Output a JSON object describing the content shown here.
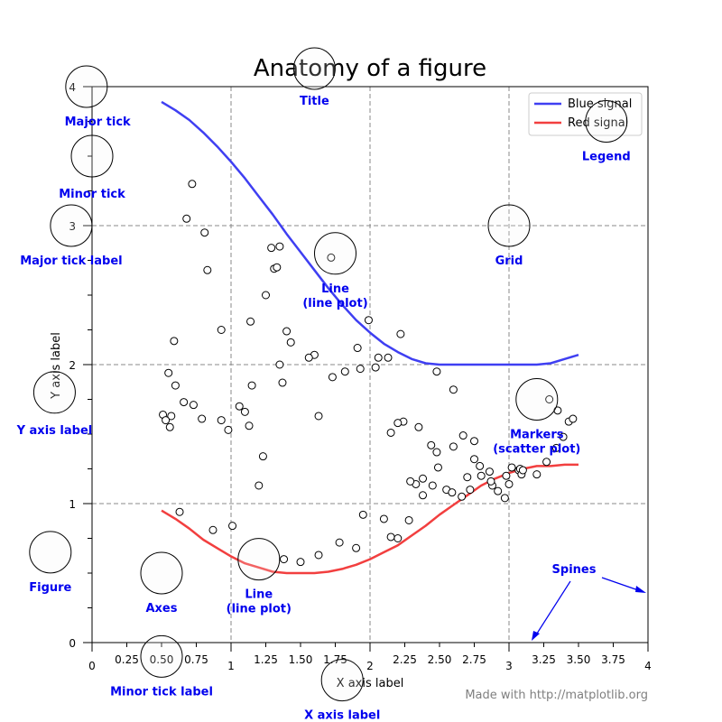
{
  "chart_data": {
    "type": "line",
    "title": "Anatomy of a figure",
    "xlabel": "X axis label",
    "ylabel": "Y axis label",
    "xlim": [
      0,
      4
    ],
    "ylim": [
      0,
      4
    ],
    "grid": true,
    "legend_position": "top-right",
    "x_major_ticks": [
      0,
      1,
      2,
      3,
      4
    ],
    "x_minor_ticks": [
      0.25,
      0.5,
      0.75,
      1.25,
      1.5,
      1.75,
      2.25,
      2.5,
      2.75,
      3.25,
      3.5,
      3.75
    ],
    "x_minor_tick_labels": [
      "0.25",
      "0.50",
      "0.75",
      "1.25",
      "1.50",
      "1.75",
      "2.25",
      "2.50",
      "2.75",
      "3.25",
      "3.50",
      "3.75"
    ],
    "y_major_ticks": [
      0,
      1,
      2,
      3,
      4
    ],
    "series": [
      {
        "name": "Blue signal",
        "color": "#3f3ff2",
        "kind": "line",
        "x": [
          0.5,
          0.6,
          0.7,
          0.8,
          0.9,
          1.0,
          1.1,
          1.2,
          1.3,
          1.4,
          1.5,
          1.6,
          1.7,
          1.8,
          1.9,
          2.0,
          2.1,
          2.2,
          2.3,
          2.4,
          2.5,
          2.6,
          2.7,
          2.8,
          2.9,
          3.0,
          3.1,
          3.2,
          3.3,
          3.4,
          3.5
        ],
        "y": [
          3.89,
          3.83,
          3.76,
          3.67,
          3.57,
          3.46,
          3.34,
          3.21,
          3.08,
          2.94,
          2.81,
          2.68,
          2.55,
          2.43,
          2.32,
          2.23,
          2.15,
          2.09,
          2.04,
          2.01,
          2.0,
          2.0,
          2.0,
          2.0,
          2.0,
          2.0,
          2.0,
          2.0,
          2.01,
          2.04,
          2.07
        ]
      },
      {
        "name": "Red signal",
        "color": "#f23f3f",
        "kind": "line",
        "x": [
          0.5,
          0.6,
          0.7,
          0.8,
          0.9,
          1.0,
          1.1,
          1.2,
          1.3,
          1.4,
          1.5,
          1.6,
          1.7,
          1.8,
          1.9,
          2.0,
          2.1,
          2.2,
          2.3,
          2.4,
          2.5,
          2.6,
          2.7,
          2.8,
          2.9,
          3.0,
          3.1,
          3.2,
          3.3,
          3.4,
          3.5
        ],
        "y": [
          0.95,
          0.89,
          0.82,
          0.74,
          0.68,
          0.62,
          0.57,
          0.54,
          0.51,
          0.5,
          0.5,
          0.5,
          0.51,
          0.53,
          0.56,
          0.6,
          0.65,
          0.7,
          0.77,
          0.84,
          0.92,
          0.99,
          1.06,
          1.13,
          1.18,
          1.22,
          1.25,
          1.27,
          1.27,
          1.28,
          1.28
        ]
      },
      {
        "kind": "scatter",
        "x": [
          0.72,
          0.68,
          0.81,
          0.83,
          0.59,
          0.93,
          1.29,
          1.35,
          1.31,
          1.33,
          1.25,
          1.14,
          1.6,
          1.72,
          1.4,
          1.43,
          1.56,
          1.73,
          1.82,
          1.99,
          1.91,
          2.22,
          2.06,
          2.48,
          2.35,
          2.6,
          2.67,
          2.75,
          2.75,
          2.6,
          2.7,
          0.51,
          0.56,
          0.66,
          0.73,
          0.79,
          0.93,
          0.98,
          1.1,
          1.06,
          1.15,
          1.23,
          1.13,
          1.2,
          1.63,
          1.35,
          1.37,
          1.93,
          2.04,
          2.13,
          2.24,
          2.2,
          2.15,
          2.33,
          2.29,
          2.38,
          2.44,
          2.48,
          2.49,
          2.55,
          2.66,
          2.72,
          2.8,
          2.88,
          2.92,
          2.97,
          3.0,
          3.02,
          2.79,
          2.86,
          2.98,
          2.87,
          2.59,
          2.45,
          2.38,
          3.07,
          3.08,
          3.09,
          3.1,
          3.2,
          3.27,
          3.34,
          3.39,
          3.43,
          3.46,
          3.35,
          3.29,
          0.63,
          0.87,
          1.01,
          1.38,
          1.5,
          1.63,
          1.78,
          1.9,
          1.95,
          2.1,
          2.15,
          2.2,
          2.28,
          0.55,
          0.6,
          0.57,
          0.53
        ],
        "y": [
          3.3,
          3.05,
          2.95,
          2.68,
          2.17,
          2.25,
          2.84,
          2.85,
          2.69,
          2.7,
          2.5,
          2.31,
          2.07,
          2.77,
          2.24,
          2.16,
          2.05,
          1.91,
          1.95,
          2.32,
          2.12,
          2.22,
          2.05,
          1.95,
          1.55,
          1.82,
          1.49,
          1.45,
          1.32,
          1.41,
          1.19,
          1.64,
          1.55,
          1.73,
          1.71,
          1.61,
          1.6,
          1.53,
          1.66,
          1.7,
          1.85,
          1.34,
          1.56,
          1.13,
          1.63,
          2.0,
          1.87,
          1.97,
          1.98,
          2.05,
          1.59,
          1.58,
          1.51,
          1.14,
          1.16,
          1.18,
          1.42,
          1.37,
          1.26,
          1.1,
          1.05,
          1.1,
          1.2,
          1.13,
          1.09,
          1.04,
          1.14,
          1.26,
          1.27,
          1.23,
          1.2,
          1.16,
          1.08,
          1.13,
          1.06,
          1.24,
          1.25,
          1.21,
          1.24,
          1.21,
          1.3,
          1.4,
          1.48,
          1.59,
          1.61,
          1.67,
          1.75,
          0.94,
          0.81,
          0.84,
          0.6,
          0.58,
          0.63,
          0.72,
          0.68,
          0.92,
          0.89,
          0.76,
          0.75,
          0.88,
          1.94,
          1.85,
          1.63,
          1.6
        ]
      }
    ],
    "annotations": [
      {
        "text": "Major tick",
        "x": -0.04,
        "y": 4.0,
        "tx": 0.04,
        "ty": 3.72
      },
      {
        "text": "Minor tick",
        "x": 0.0,
        "y": 3.5,
        "tx": 0.0,
        "ty": 3.2
      },
      {
        "text": "Major tick label",
        "x": -0.15,
        "y": 3.0,
        "tx": -0.15,
        "ty": 2.72
      },
      {
        "text": "Y axis label",
        "x": -0.27,
        "y": 1.8,
        "tx": -0.27,
        "ty": 1.5
      },
      {
        "text": "Title",
        "x": 1.6,
        "y": 4.13,
        "tx": 1.6,
        "ty": 3.87
      },
      {
        "text": "Legend",
        "x": 3.7,
        "y": 3.75,
        "tx": 3.7,
        "ty": 3.47
      },
      {
        "text": "Grid",
        "x": 3.0,
        "y": 3.0,
        "tx": 3.0,
        "ty": 2.72
      },
      {
        "text": "Line\n(line plot)",
        "x": 1.75,
        "y": 2.8,
        "tx": 1.75,
        "ty": 2.52
      },
      {
        "text": "Markers\n(scatter plot)",
        "x": 3.2,
        "y": 1.75,
        "tx": 3.2,
        "ty": 1.47
      },
      {
        "text": "Line\n(line plot)",
        "x": 1.2,
        "y": 0.6,
        "tx": 1.2,
        "ty": 0.32
      },
      {
        "text": "Axes",
        "x": 0.5,
        "y": 0.5,
        "tx": 0.5,
        "ty": 0.22
      },
      {
        "text": "Figure",
        "x": -0.3,
        "y": 0.65,
        "tx": -0.3,
        "ty": 0.37
      },
      {
        "text": "Minor tick label",
        "x": 0.5,
        "y": -0.1,
        "tx": 0.5,
        "ty": -0.38
      },
      {
        "text": "X axis label",
        "x": 1.8,
        "y": -0.27,
        "tx": 1.8,
        "ty": -0.55
      }
    ],
    "spines_label": "Spines",
    "footer": "Made with http://matplotlib.org"
  },
  "colors": {
    "annotation_text": "#0000ee",
    "marker_circle_fill": "#f7f7f7",
    "grid": "#888888",
    "axis": "#000000"
  }
}
